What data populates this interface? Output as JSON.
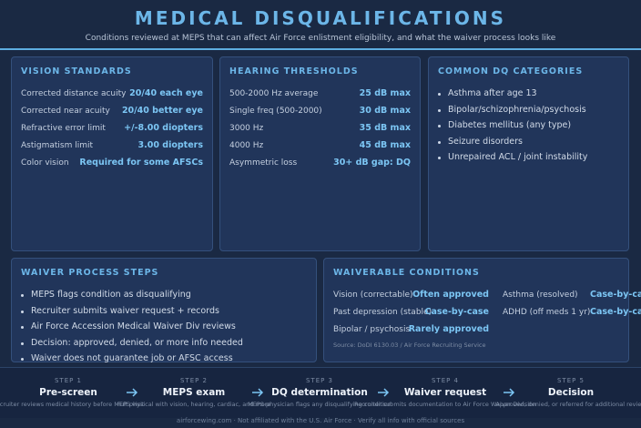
{
  "header": {
    "title": "MEDICAL DISQUALIFICATIONS",
    "subtitle": "Conditions reviewed at MEPS that can affect Air Force enlistment eligibility, and what the waiver process looks like"
  },
  "vision": {
    "title": "VISION STANDARDS",
    "rows": [
      {
        "label": "Corrected distance acuity",
        "value": "20/40 each eye"
      },
      {
        "label": "Corrected near acuity",
        "value": "20/40 better eye"
      },
      {
        "label": "Refractive error limit",
        "value": "+/-8.00 diopters"
      },
      {
        "label": "Astigmatism limit",
        "value": "3.00 diopters"
      },
      {
        "label": "Color vision",
        "value": "Required for some AFSCs"
      }
    ]
  },
  "hearing": {
    "title": "HEARING THRESHOLDS",
    "rows": [
      {
        "label": "500-2000 Hz average",
        "value": "25 dB max"
      },
      {
        "label": "Single freq (500-2000)",
        "value": "30 dB max"
      },
      {
        "label": "3000 Hz",
        "value": "35 dB max"
      },
      {
        "label": "4000 Hz",
        "value": "45 dB max"
      },
      {
        "label": "Asymmetric loss",
        "value": "30+ dB gap: DQ"
      }
    ]
  },
  "categories": {
    "title": "COMMON DQ CATEGORIES",
    "items": [
      "Asthma after age 13",
      "Bipolar/schizophrenia/psychosis",
      "Diabetes mellitus (any type)",
      "Seizure disorders",
      "Unrepaired ACL / joint instability"
    ]
  },
  "waiver_process": {
    "title": "WAIVER PROCESS STEPS",
    "items": [
      "MEPS flags condition as disqualifying",
      "Recruiter submits waiver request + records",
      "Air Force Accession Medical Waiver Div reviews",
      "Decision: approved, denied, or more info needed",
      "Waiver does not guarantee job or AFSC access"
    ]
  },
  "waiverable": {
    "title": "WAIVERABLE CONDITIONS",
    "left": [
      {
        "label": "Vision (correctable)",
        "value": "Often approved"
      },
      {
        "label": "Past depression (stable)",
        "value": "Case-by-case"
      },
      {
        "label": "Bipolar / psychosis",
        "value": "Rarely approved"
      }
    ],
    "right": [
      {
        "label": "Asthma (resolved)",
        "value": "Case-by-case"
      },
      {
        "label": "ADHD (off meds 1 yr)",
        "value": "Case-by-case"
      }
    ],
    "source": "Source: DoDI 6130.03 / Air Force Recruiting Service"
  },
  "steps": [
    {
      "number": "STEP 1",
      "title": "Pre-screen",
      "description": "Recruiter reviews medical history before MEPS visit"
    },
    {
      "number": "STEP 2",
      "title": "MEPS exam",
      "description": "Full physical with vision, hearing, cardiac, and more"
    },
    {
      "number": "STEP 3",
      "title": "DQ determination",
      "description": "MEPS physician flags any disqualifying condition"
    },
    {
      "number": "STEP 4",
      "title": "Waiver request",
      "description": "Recruiter submits documentation to Air Force Waiver Division"
    },
    {
      "number": "STEP 5",
      "title": "Decision",
      "description": "Approved, denied, or referred for additional review"
    }
  ],
  "footer": "airforcewing.com · Not affiliated with the U.S. Air Force · Verify all info with official sources"
}
